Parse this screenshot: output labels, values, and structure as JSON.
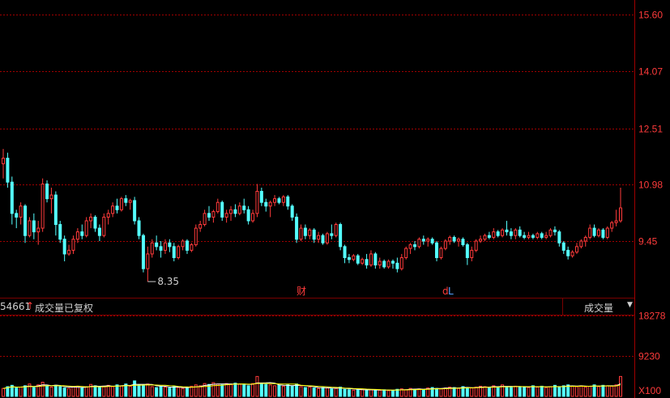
{
  "chart_data": [
    {
      "type": "candlestick",
      "y_ticks": [
        "15.60",
        "14.07",
        "12.51",
        "10.98",
        "9.45"
      ],
      "ylim": [
        8.0,
        15.6
      ],
      "low_marker": "8.35",
      "events": [
        "财",
        "d",
        "L"
      ],
      "colors": {
        "up": "#ff3b3b",
        "down": "#54ffff",
        "grid": "#a00000",
        "axis": "#a00000"
      },
      "ohlc": [
        [
          11.55,
          11.95,
          11.15,
          11.7
        ],
        [
          11.7,
          11.85,
          10.9,
          11.05
        ],
        [
          11.05,
          11.2,
          9.9,
          10.2
        ],
        [
          10.2,
          10.3,
          9.8,
          10.1
        ],
        [
          10.1,
          10.5,
          9.9,
          10.4
        ],
        [
          10.4,
          10.45,
          9.4,
          9.6
        ],
        [
          9.6,
          10.1,
          9.55,
          10.0
        ],
        [
          10.0,
          10.2,
          9.5,
          9.7
        ],
        [
          9.7,
          10.0,
          9.35,
          9.8
        ],
        [
          9.8,
          11.15,
          9.7,
          11.0
        ],
        [
          11.0,
          11.1,
          10.5,
          10.6
        ],
        [
          10.6,
          10.9,
          10.2,
          10.7
        ],
        [
          10.7,
          10.8,
          9.6,
          9.9
        ],
        [
          9.9,
          10.0,
          9.4,
          9.5
        ],
        [
          9.5,
          9.6,
          8.9,
          9.1
        ],
        [
          9.1,
          9.35,
          9.05,
          9.2
        ],
        [
          9.2,
          9.6,
          9.1,
          9.5
        ],
        [
          9.5,
          9.8,
          9.4,
          9.7
        ],
        [
          9.7,
          9.9,
          9.5,
          9.6
        ],
        [
          9.6,
          10.1,
          9.55,
          10.0
        ],
        [
          10.0,
          10.2,
          9.8,
          10.1
        ],
        [
          10.1,
          10.15,
          9.7,
          9.8
        ],
        [
          9.8,
          9.9,
          9.45,
          9.6
        ],
        [
          9.6,
          10.2,
          9.55,
          10.1
        ],
        [
          10.1,
          10.3,
          9.9,
          10.2
        ],
        [
          10.2,
          10.5,
          10.1,
          10.4
        ],
        [
          10.4,
          10.6,
          10.2,
          10.3
        ],
        [
          10.3,
          10.65,
          10.25,
          10.6
        ],
        [
          10.6,
          10.7,
          10.4,
          10.5
        ],
        [
          10.5,
          10.6,
          10.3,
          10.55
        ],
        [
          10.55,
          10.65,
          9.9,
          10.0
        ],
        [
          10.0,
          10.1,
          9.5,
          9.6
        ],
        [
          9.6,
          9.65,
          8.6,
          8.7
        ],
        [
          8.7,
          9.3,
          8.35,
          9.1
        ],
        [
          9.1,
          9.5,
          9.0,
          9.4
        ],
        [
          9.4,
          9.6,
          9.2,
          9.3
        ],
        [
          9.3,
          9.45,
          9.0,
          9.2
        ],
        [
          9.2,
          9.5,
          9.1,
          9.4
        ],
        [
          9.4,
          9.5,
          9.15,
          9.3
        ],
        [
          9.3,
          9.4,
          8.9,
          9.0
        ],
        [
          9.0,
          9.35,
          8.95,
          9.3
        ],
        [
          9.3,
          9.5,
          9.2,
          9.45
        ],
        [
          9.45,
          9.5,
          9.1,
          9.2
        ],
        [
          9.2,
          9.4,
          9.15,
          9.35
        ],
        [
          9.35,
          9.9,
          9.3,
          9.8
        ],
        [
          9.8,
          10.0,
          9.7,
          9.9
        ],
        [
          9.9,
          10.3,
          9.85,
          10.2
        ],
        [
          10.2,
          10.4,
          10.0,
          10.1
        ],
        [
          10.1,
          10.3,
          9.95,
          10.25
        ],
        [
          10.25,
          10.6,
          10.2,
          10.5
        ],
        [
          10.5,
          10.55,
          10.0,
          10.1
        ],
        [
          10.1,
          10.3,
          9.95,
          10.2
        ],
        [
          10.2,
          10.4,
          10.0,
          10.3
        ],
        [
          10.3,
          10.45,
          10.1,
          10.2
        ],
        [
          10.2,
          10.5,
          10.15,
          10.4
        ],
        [
          10.4,
          10.6,
          10.2,
          10.3
        ],
        [
          10.3,
          10.4,
          9.9,
          10.0
        ],
        [
          10.0,
          10.3,
          9.95,
          10.2
        ],
        [
          10.2,
          11.0,
          10.1,
          10.8
        ],
        [
          10.8,
          10.9,
          10.4,
          10.5
        ],
        [
          10.5,
          10.6,
          10.25,
          10.4
        ],
        [
          10.4,
          10.55,
          10.1,
          10.5
        ],
        [
          10.5,
          10.7,
          10.4,
          10.6
        ],
        [
          10.6,
          10.65,
          10.45,
          10.5
        ],
        [
          10.5,
          10.7,
          10.4,
          10.65
        ],
        [
          10.65,
          10.7,
          10.3,
          10.4
        ],
        [
          10.4,
          10.45,
          10.0,
          10.1
        ],
        [
          10.1,
          10.2,
          9.4,
          9.5
        ],
        [
          9.5,
          9.9,
          9.45,
          9.8
        ],
        [
          9.8,
          9.9,
          9.5,
          9.6
        ],
        [
          9.6,
          9.8,
          9.5,
          9.75
        ],
        [
          9.75,
          9.8,
          9.4,
          9.5
        ],
        [
          9.5,
          9.7,
          9.4,
          9.6
        ],
        [
          9.6,
          9.65,
          9.35,
          9.4
        ],
        [
          9.4,
          9.7,
          9.35,
          9.65
        ],
        [
          9.65,
          9.9,
          9.5,
          9.6
        ],
        [
          9.6,
          9.95,
          9.55,
          9.9
        ],
        [
          9.9,
          9.95,
          9.2,
          9.3
        ],
        [
          9.3,
          9.35,
          8.85,
          9.0
        ],
        [
          9.0,
          9.1,
          8.85,
          8.95
        ],
        [
          8.95,
          9.1,
          8.9,
          9.05
        ],
        [
          9.05,
          9.1,
          8.8,
          8.85
        ],
        [
          8.85,
          9.0,
          8.8,
          8.95
        ],
        [
          8.95,
          9.1,
          8.7,
          8.8
        ],
        [
          8.8,
          9.2,
          8.75,
          9.1
        ],
        [
          9.1,
          9.15,
          8.7,
          8.8
        ],
        [
          8.8,
          9.0,
          8.7,
          8.9
        ],
        [
          8.9,
          8.95,
          8.7,
          8.75
        ],
        [
          8.75,
          8.95,
          8.7,
          8.9
        ],
        [
          8.9,
          8.95,
          8.7,
          8.85
        ],
        [
          8.85,
          9.0,
          8.6,
          8.7
        ],
        [
          8.7,
          9.1,
          8.65,
          9.0
        ],
        [
          9.0,
          9.3,
          8.95,
          9.25
        ],
        [
          9.25,
          9.4,
          9.1,
          9.35
        ],
        [
          9.35,
          9.45,
          9.2,
          9.3
        ],
        [
          9.3,
          9.55,
          9.25,
          9.5
        ],
        [
          9.5,
          9.6,
          9.35,
          9.45
        ],
        [
          9.45,
          9.55,
          9.3,
          9.5
        ],
        [
          9.5,
          9.55,
          9.35,
          9.4
        ],
        [
          9.4,
          9.45,
          8.9,
          9.0
        ],
        [
          9.0,
          9.3,
          8.95,
          9.25
        ],
        [
          9.25,
          9.5,
          9.2,
          9.45
        ],
        [
          9.45,
          9.6,
          9.35,
          9.55
        ],
        [
          9.55,
          9.6,
          9.4,
          9.45
        ],
        [
          9.45,
          9.55,
          9.3,
          9.5
        ],
        [
          9.5,
          9.55,
          9.3,
          9.35
        ],
        [
          9.35,
          9.4,
          8.8,
          9.0
        ],
        [
          9.0,
          9.3,
          8.9,
          9.2
        ],
        [
          9.2,
          9.5,
          9.15,
          9.45
        ],
        [
          9.45,
          9.6,
          9.4,
          9.5
        ],
        [
          9.5,
          9.65,
          9.45,
          9.6
        ],
        [
          9.6,
          9.7,
          9.5,
          9.55
        ],
        [
          9.55,
          9.8,
          9.5,
          9.7
        ],
        [
          9.7,
          9.75,
          9.55,
          9.6
        ],
        [
          9.6,
          9.8,
          9.55,
          9.75
        ],
        [
          9.75,
          10.0,
          9.6,
          9.7
        ],
        [
          9.7,
          9.8,
          9.5,
          9.6
        ],
        [
          9.6,
          9.8,
          9.5,
          9.75
        ],
        [
          9.75,
          9.85,
          9.55,
          9.6
        ],
        [
          9.6,
          9.7,
          9.5,
          9.55
        ],
        [
          9.55,
          9.7,
          9.5,
          9.6
        ],
        [
          9.6,
          9.65,
          9.5,
          9.55
        ],
        [
          9.55,
          9.7,
          9.5,
          9.65
        ],
        [
          9.65,
          9.7,
          9.5,
          9.55
        ],
        [
          9.55,
          9.7,
          9.5,
          9.6
        ],
        [
          9.6,
          9.8,
          9.55,
          9.75
        ],
        [
          9.75,
          9.85,
          9.6,
          9.7
        ],
        [
          9.7,
          9.75,
          9.3,
          9.4
        ],
        [
          9.4,
          9.45,
          9.1,
          9.2
        ],
        [
          9.2,
          9.3,
          8.95,
          9.05
        ],
        [
          9.05,
          9.2,
          9.0,
          9.15
        ],
        [
          9.15,
          9.4,
          9.1,
          9.3
        ],
        [
          9.3,
          9.5,
          9.25,
          9.45
        ],
        [
          9.45,
          9.6,
          9.3,
          9.55
        ],
        [
          9.55,
          9.9,
          9.5,
          9.8
        ],
        [
          9.8,
          9.9,
          9.55,
          9.6
        ],
        [
          9.6,
          9.8,
          9.55,
          9.75
        ],
        [
          9.75,
          9.8,
          9.5,
          9.55
        ],
        [
          9.55,
          9.85,
          9.5,
          9.8
        ],
        [
          9.8,
          10.0,
          9.7,
          9.95
        ],
        [
          9.95,
          10.3,
          9.85,
          10.0
        ],
        [
          10.0,
          10.9,
          9.95,
          10.35
        ]
      ],
      "volume": {
        "y_ticks": [
          "18278",
          "9230"
        ],
        "unit_label": "X100",
        "values": [
          1800,
          2200,
          2500,
          1900,
          2100,
          2400,
          2800,
          2000,
          2600,
          3200,
          2300,
          2100,
          2500,
          2200,
          1900,
          1800,
          2100,
          2300,
          2000,
          2200,
          2700,
          2400,
          2100,
          2300,
          2500,
          2200,
          2600,
          2400,
          2800,
          2300,
          3500,
          2600,
          2400,
          2800,
          2200,
          2000,
          2300,
          2100,
          1900,
          2200,
          2000,
          1800,
          2100,
          2300,
          2600,
          2400,
          2900,
          2700,
          3100,
          2800,
          2600,
          2900,
          2700,
          3000,
          2800,
          2600,
          2400,
          2900,
          4500,
          2800,
          2700,
          2600,
          2400,
          2500,
          2300,
          2600,
          2400,
          2800,
          2200,
          2000,
          2100,
          1900,
          1800,
          2000,
          1900,
          1700,
          1800,
          2100,
          1600,
          1500,
          1400,
          1500,
          1600,
          1400,
          1500,
          1300,
          1400,
          1500,
          1300,
          1400,
          1600,
          1700,
          1500,
          1800,
          1600,
          1700,
          1500,
          1900,
          2000,
          1800,
          1700,
          1900,
          2100,
          2000,
          1800,
          2200,
          2000,
          1900,
          2100,
          2300,
          2200,
          2000,
          2400,
          2100,
          2600,
          2200,
          2000,
          2300,
          2100,
          2200,
          2000,
          2400,
          2100,
          2300,
          2000,
          2200,
          2500,
          2100,
          2400,
          2600,
          2300,
          2200,
          2400,
          2100,
          2300,
          2600,
          2200,
          2500,
          2400,
          2300,
          2600,
          4500
        ]
      }
    }
  ],
  "volume_panel": {
    "code": "54661",
    "arrow": "↑",
    "title": "成交量已复权"
  },
  "indicator_selector": {
    "label": "成交量",
    "caret": "▼"
  }
}
